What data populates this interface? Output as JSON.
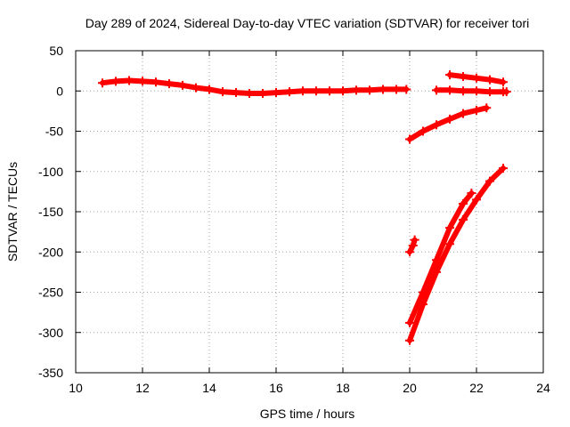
{
  "chart_data": {
    "type": "scatter",
    "title": "Day 289 of 2024, Sidereal Day-to-day VTEC variation (SDTVAR) for receiver tori",
    "xlabel": "GPS time / hours",
    "ylabel": "SDTVAR / TECUs",
    "xlim": [
      10,
      24
    ],
    "ylim": [
      -350,
      50
    ],
    "x_ticks": [
      10,
      12,
      14,
      16,
      18,
      20,
      22,
      24
    ],
    "y_ticks": [
      50,
      0,
      -50,
      -100,
      -150,
      -200,
      -250,
      -300,
      -350
    ],
    "grid": true,
    "legend": "none",
    "marker": "plus",
    "series_color": "#ff0000",
    "series": [
      {
        "x": [
          10.8,
          11.2,
          11.6,
          12.0,
          12.4,
          12.8,
          13.2,
          13.6,
          14.0,
          14.4,
          14.8,
          15.2,
          15.6,
          16.0,
          16.4,
          16.8,
          17.2,
          17.6,
          18.0,
          18.4,
          18.8,
          19.2,
          19.6,
          19.9
        ],
        "y": [
          10,
          12,
          13,
          12,
          11,
          9,
          7,
          4,
          2,
          -1,
          -2,
          -3,
          -3,
          -2,
          -1,
          0,
          0,
          0,
          0,
          1,
          1,
          2,
          2,
          2
        ]
      },
      {
        "x": [
          20.8,
          21.2,
          21.6,
          22.0,
          22.4,
          22.8,
          22.9
        ],
        "y": [
          1,
          1,
          0,
          0,
          -1,
          -1,
          -1
        ]
      },
      {
        "x": [
          21.2,
          21.6,
          22.0,
          22.4,
          22.8
        ],
        "y": [
          20,
          18,
          16,
          14,
          11
        ]
      },
      {
        "x": [
          20.0,
          20.4,
          20.8,
          21.2,
          21.6,
          22.0,
          22.3
        ],
        "y": [
          -60,
          -50,
          -42,
          -35,
          -28,
          -24,
          -21
        ]
      },
      {
        "x": [
          20.0,
          20.1,
          20.15
        ],
        "y": [
          -200,
          -192,
          -185
        ]
      },
      {
        "x": [
          20.0,
          20.4,
          20.8,
          21.2,
          21.6,
          21.85
        ],
        "y": [
          -288,
          -250,
          -210,
          -170,
          -140,
          -127
        ]
      },
      {
        "x": [
          20.0,
          20.4,
          20.8,
          21.2,
          21.6,
          22.0,
          22.4,
          22.8
        ],
        "y": [
          -310,
          -265,
          -225,
          -190,
          -160,
          -135,
          -112,
          -96
        ]
      }
    ]
  }
}
